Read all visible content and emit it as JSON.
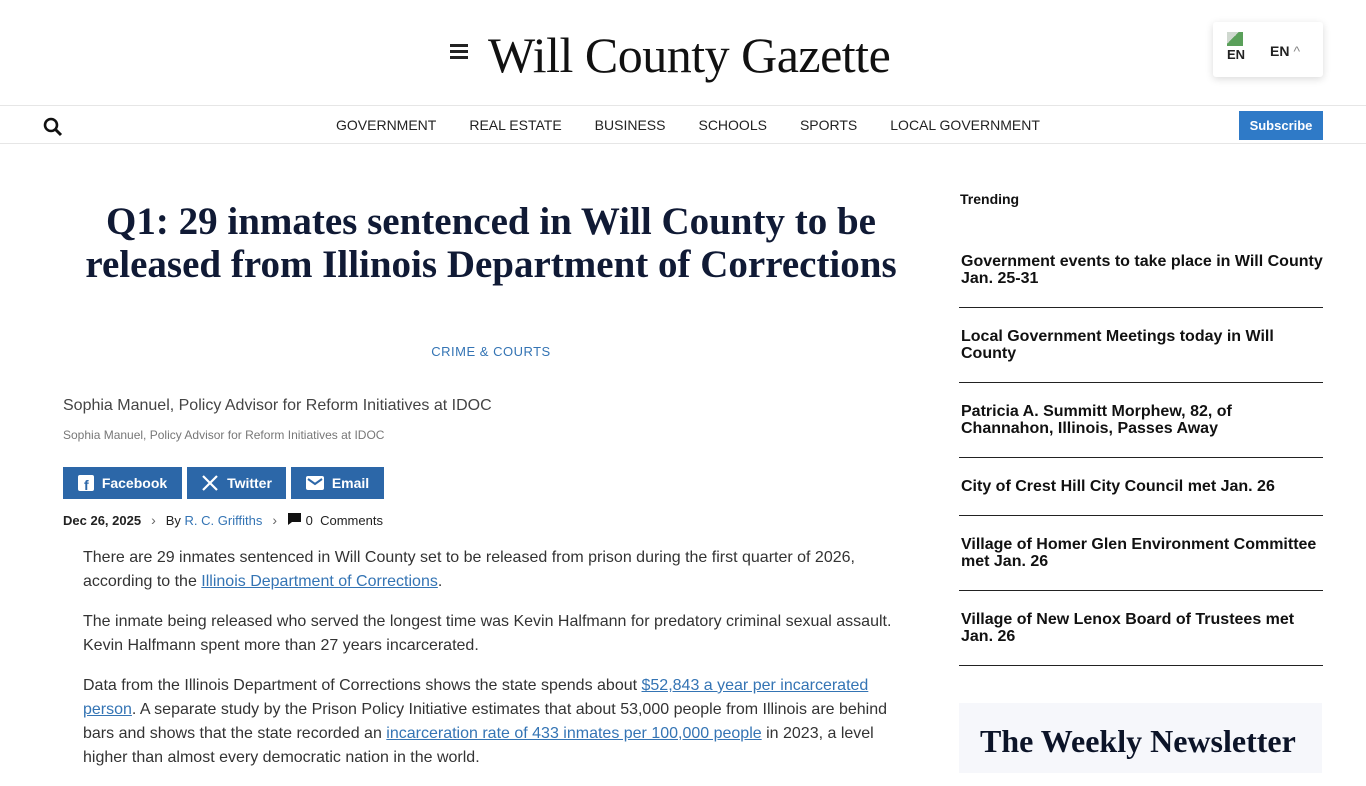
{
  "header": {
    "logo": "Will County Gazette",
    "lang_flag": "EN",
    "lang": "EN"
  },
  "nav": {
    "items": [
      "GOVERNMENT",
      "REAL ESTATE",
      "BUSINESS",
      "SCHOOLS",
      "SPORTS",
      "LOCAL GOVERNMENT"
    ],
    "subscribe": "Subscribe"
  },
  "article": {
    "title": "Q1: 29 inmates sentenced in Will County to be released from Illinois Department of Corrections",
    "category": "CRIME & COURTS",
    "image_alt": "Sophia Manuel, Policy Advisor for Reform Initiatives at IDOC",
    "caption": "Sophia Manuel, Policy Advisor for Reform Initiatives at IDOC",
    "share": {
      "facebook": "Facebook",
      "twitter": "Twitter",
      "email": "Email"
    },
    "date": "Dec 26, 2025",
    "by": "By",
    "author": "R. C. Griffiths",
    "comments_count": "0",
    "comments": "Comments",
    "p1a": "There are 29 inmates sentenced in Will County set to be released from prison during the first quarter of 2026, according to the ",
    "p1link": "Illinois Department of Corrections",
    "p1b": ".",
    "p2": "The inmate being released who served the longest time was Kevin Halfmann for predatory criminal sexual assault. Kevin Halfmann spent more than 27 years incarcerated.",
    "p3a": "Data from the Illinois Department of Corrections shows the state spends about ",
    "p3link1": "$52,843 a year per incarcerated person",
    "p3b": ". A separate study by the Prison Policy Initiative estimates that about 53,000 people from Illinois are behind bars and shows that the state recorded an ",
    "p3link2": "incarceration rate of 433 inmates per 100,000 people",
    "p3c": " in 2023, a level higher than almost every democratic nation in the world."
  },
  "sidebar": {
    "trending": "Trending",
    "items": [
      "Government events to take place in Will County Jan. 25-31",
      "Local Government Meetings today in Will County",
      "Patricia A. Summitt Morphew, 82, of Channahon, Illinois, Passes Away",
      "City of Crest Hill City Council met Jan. 26",
      "Village of Homer Glen Environment Committee met Jan. 26",
      "Village of New Lenox Board of Trustees met Jan. 26"
    ],
    "newsletter": "The Weekly Newsletter"
  }
}
